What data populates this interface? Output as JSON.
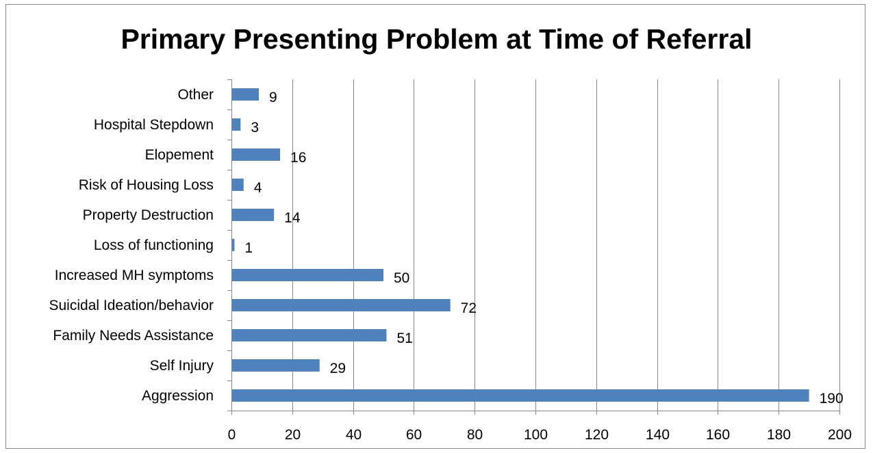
{
  "chart_data": {
    "type": "bar",
    "orientation": "horizontal",
    "title": "Primary Presenting Problem at Time of Referral",
    "categories": [
      "Aggression",
      "Self Injury",
      "Family Needs Assistance",
      "Suicidal Ideation/behavior",
      "Increased MH symptoms",
      "Loss of functioning",
      "Property Destruction",
      "Risk of Housing Loss",
      "Elopement",
      "Hospital Stepdown",
      "Other"
    ],
    "values": [
      190,
      29,
      51,
      72,
      50,
      1,
      14,
      4,
      16,
      3,
      9
    ],
    "xlim": [
      0,
      200
    ],
    "xticks": [
      0,
      20,
      40,
      60,
      80,
      100,
      120,
      140,
      160,
      180,
      200
    ],
    "grid": "vertical",
    "legend": "none",
    "data_labels": true,
    "bar_color": "#4f81bd"
  }
}
